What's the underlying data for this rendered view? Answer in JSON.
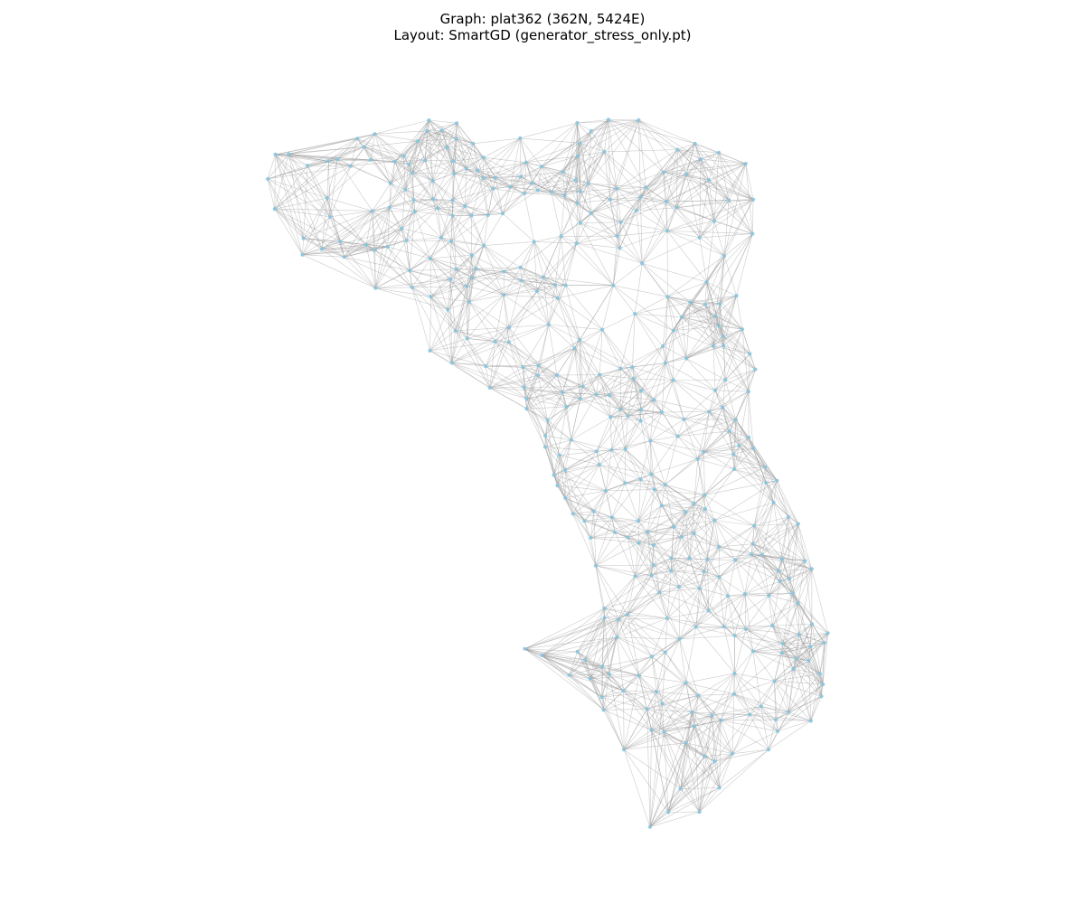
{
  "figure": {
    "title_line1": "Graph: plat362 (362N, 5424E)",
    "title_line2": "Layout: SmartGD (generator_stress_only.pt)"
  },
  "graph": {
    "name": "plat362",
    "node_count": 362,
    "edge_count": 5424,
    "layout": "SmartGD",
    "node_color": "#87c7e0",
    "edge_color": "#8c8c8c"
  }
}
